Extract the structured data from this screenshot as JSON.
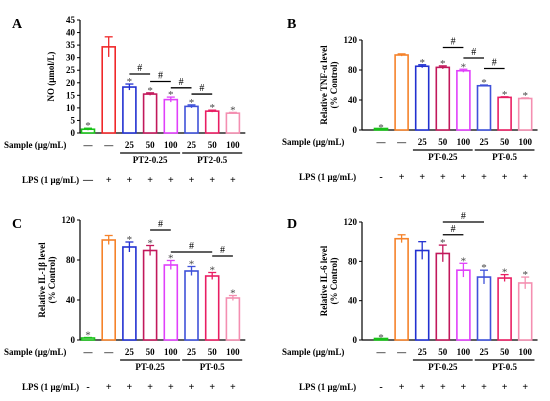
{
  "chart_data": [
    {
      "type": "bar",
      "panel": "A",
      "ylabel": "NO (μmol/L)",
      "ylim": [
        0,
        45
      ],
      "yticks": [
        0,
        5,
        10,
        15,
        20,
        25,
        30,
        35,
        40,
        45
      ],
      "sample_label": "Sample (μg/mL)",
      "lps_label": "LPS (1 μg/mL)",
      "sample_values": [
        "—",
        "—",
        "25",
        "50",
        "100",
        "25",
        "50",
        "100"
      ],
      "lps_values": [
        "—",
        "+",
        "+",
        "+",
        "+",
        "+",
        "+",
        "+"
      ],
      "groups": [
        {
          "label": "PT2-0.25",
          "from": 2,
          "to": 4
        },
        {
          "label": "PT2-0.5",
          "from": 5,
          "to": 7
        }
      ],
      "values": [
        1.5,
        34.3,
        18.3,
        15.5,
        13.3,
        10.6,
        8.7,
        7.9
      ],
      "errors": [
        0.4,
        4.0,
        1.2,
        0.5,
        1.0,
        0.6,
        0.4,
        0.3
      ],
      "stars": [
        "*",
        "",
        "*",
        "*",
        "*",
        "*",
        "*",
        "*"
      ],
      "colors": [
        "#19c219",
        "#f0282a",
        "#2231d1",
        "#c2185b",
        "#e040fb",
        "#3f51d9",
        "#e91e63",
        "#f48fb1"
      ],
      "brackets": [
        {
          "from": 2,
          "to": 3,
          "y": 23.5,
          "label": "#"
        },
        {
          "from": 3,
          "to": 4,
          "y": 20.5,
          "label": "#"
        },
        {
          "from": 4,
          "to": 5,
          "y": 18.0,
          "label": "#"
        },
        {
          "from": 5,
          "to": 6,
          "y": 15.5,
          "label": "#"
        }
      ]
    },
    {
      "type": "bar",
      "panel": "B",
      "ylabel": "Relative TNF-α level (% Control)",
      "ylim": [
        0,
        120
      ],
      "yticks": [
        0,
        40,
        80,
        120
      ],
      "sample_label": "Sample (μg/mL)",
      "lps_label": "LPS (1 μg/mL)",
      "sample_values": [
        "—",
        "—",
        "25",
        "50",
        "100",
        "25",
        "50",
        "100"
      ],
      "lps_values": [
        "-",
        "+",
        "+",
        "+",
        "+",
        "+",
        "+",
        "+"
      ],
      "groups": [
        {
          "label": "PT-0.25",
          "from": 2,
          "to": 4
        },
        {
          "label": "PT-0.5",
          "from": 5,
          "to": 7
        }
      ],
      "values": [
        0,
        100,
        85,
        83.5,
        79,
        59,
        43.5,
        42
      ],
      "errors": [
        0,
        1.5,
        2.0,
        2.0,
        2.0,
        1.0,
        0.8,
        0.8
      ],
      "stars": [
        "*",
        "",
        "*",
        "*",
        "*",
        "*",
        "*",
        "*"
      ],
      "colors": [
        "#19c219",
        "#f5822a",
        "#2231d1",
        "#c2185b",
        "#e040fb",
        "#3f51d9",
        "#e91e63",
        "#f48fb1"
      ],
      "brackets": [
        {
          "from": 3,
          "to": 4,
          "y": 110,
          "label": "#"
        },
        {
          "from": 4,
          "to": 5,
          "y": 96,
          "label": "#"
        },
        {
          "from": 5,
          "to": 6,
          "y": 82,
          "label": "#"
        }
      ]
    },
    {
      "type": "bar",
      "panel": "C",
      "ylabel": "Relative IL-1β level (% Control)",
      "ylim": [
        0,
        120
      ],
      "yticks": [
        0,
        40,
        80,
        120
      ],
      "sample_label": "Sample (μg/mL)",
      "lps_label": "LPS (1 μg/mL)",
      "sample_values": [
        "—",
        "—",
        "25",
        "50",
        "100",
        "25",
        "50",
        "100"
      ],
      "lps_values": [
        "-",
        "+",
        "+",
        "+",
        "+",
        "+",
        "+",
        "+"
      ],
      "groups": [
        {
          "label": "PT-0.25",
          "from": 2,
          "to": 4
        },
        {
          "label": "PT-0.5",
          "from": 5,
          "to": 7
        }
      ],
      "values": [
        2,
        100,
        93,
        89.5,
        75,
        69,
        64,
        42
      ],
      "errors": [
        0.5,
        4.5,
        5.0,
        5.0,
        4.5,
        4.5,
        3.5,
        2.5
      ],
      "stars": [
        "*",
        "",
        "*",
        "*",
        "*",
        "*",
        "*",
        "*"
      ],
      "colors": [
        "#19c219",
        "#f5822a",
        "#2231d1",
        "#c2185b",
        "#e040fb",
        "#3f51d9",
        "#e91e63",
        "#f48fb1"
      ],
      "brackets": [
        {
          "from": 3,
          "to": 4,
          "y": 110,
          "label": "#"
        },
        {
          "from": 4,
          "to": 6,
          "y": 88,
          "label": "#"
        },
        {
          "from": 6,
          "to": 7,
          "y": 84,
          "label": "#"
        }
      ]
    },
    {
      "type": "bar",
      "panel": "D",
      "ylabel": "Relative IL-6 level (% Control)",
      "ylim": [
        0,
        120
      ],
      "yticks": [
        0,
        40,
        80,
        120
      ],
      "sample_label": "Sample (μg/mL)",
      "lps_label": "LPS (1 μg/mL)",
      "sample_values": [
        "—",
        "—",
        "25",
        "50",
        "100",
        "25",
        "50",
        "100"
      ],
      "lps_values": [
        "-",
        "+",
        "+",
        "+",
        "+",
        "+",
        "+",
        "+"
      ],
      "groups": [
        {
          "label": "PT-0.25",
          "from": 2,
          "to": 4
        },
        {
          "label": "PT-0.5",
          "from": 5,
          "to": 7
        }
      ],
      "values": [
        0,
        103,
        91,
        88,
        71,
        64,
        63,
        58
      ],
      "errors": [
        0,
        4.0,
        9.0,
        8.5,
        7.0,
        7.0,
        3.5,
        6.0
      ],
      "stars": [
        "*",
        "",
        "",
        "*",
        "*",
        "*",
        "*",
        "*"
      ],
      "colors": [
        "#19c219",
        "#f5822a",
        "#2231d1",
        "#c2185b",
        "#e040fb",
        "#3f51d9",
        "#e91e63",
        "#f48fb1"
      ],
      "brackets": [
        {
          "from": 3,
          "to": 5,
          "y": 120,
          "label": "#"
        },
        {
          "from": 3,
          "to": 4,
          "y": 107,
          "label": "#"
        }
      ]
    }
  ]
}
